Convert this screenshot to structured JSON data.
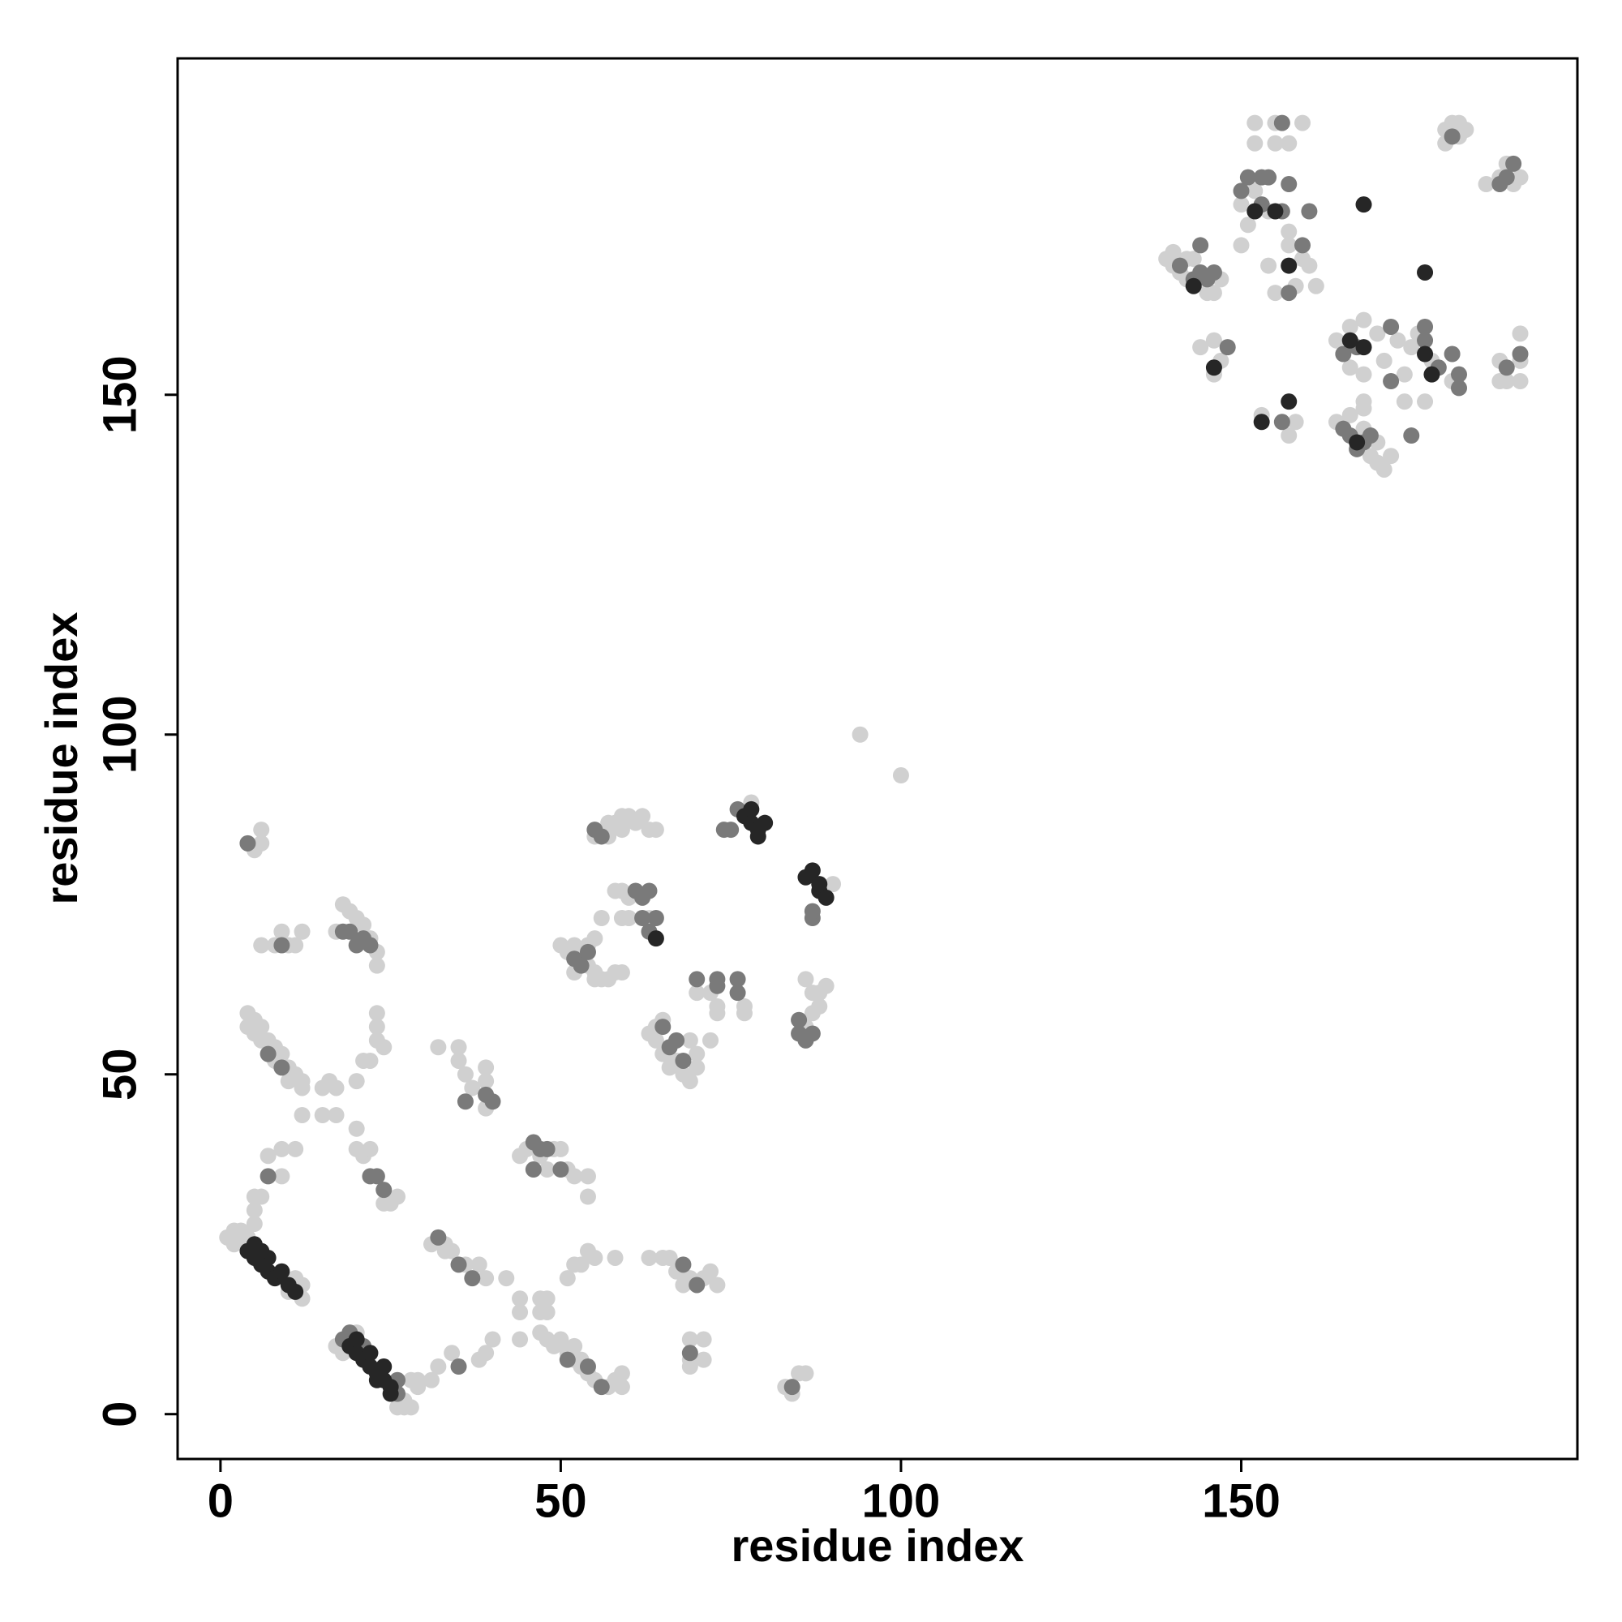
{
  "chart_data": {
    "type": "scatter",
    "xlabel": "residue index",
    "ylabel": "residue index",
    "xlim": [
      -6.3,
      199.4
    ],
    "ylim": [
      -6.6,
      199.5
    ],
    "xticks": [
      0,
      50,
      100,
      150
    ],
    "yticks": [
      0,
      50,
      100,
      150
    ],
    "series": [
      {
        "color": "#d0d0d0",
        "x": [
          1,
          2,
          3,
          2,
          11,
          12,
          10,
          12,
          4,
          3,
          17,
          18,
          26,
          27,
          28,
          29,
          28,
          20,
          27,
          4,
          5,
          6,
          7,
          8,
          9,
          10,
          11,
          12,
          4,
          6,
          8,
          10,
          12,
          5,
          12,
          5,
          6,
          6,
          6,
          8,
          9,
          11,
          12,
          10,
          18,
          19,
          20,
          21,
          22,
          23,
          23,
          17,
          23,
          23,
          23,
          24,
          21,
          22,
          20,
          17,
          15,
          16,
          17,
          15,
          20,
          20,
          21,
          22,
          24,
          25,
          26,
          7,
          9,
          11,
          9,
          5,
          5,
          5,
          6,
          31,
          33,
          34,
          36,
          38,
          39,
          42,
          33,
          29,
          31,
          32,
          34,
          38,
          39,
          40,
          32,
          35,
          35,
          36,
          37,
          39,
          39,
          39,
          44,
          45,
          47,
          49,
          50,
          51,
          52,
          54,
          54,
          48,
          44,
          44,
          44,
          48,
          48,
          47,
          47,
          51,
          52,
          53,
          54,
          55,
          58,
          47,
          48,
          49,
          50,
          51,
          52,
          53,
          54,
          55,
          57,
          58,
          59,
          59,
          52,
          53,
          50,
          51,
          52,
          53,
          54,
          55,
          56,
          57,
          58,
          59,
          54,
          55,
          56,
          52,
          55,
          55,
          57,
          58,
          59,
          60,
          61,
          62,
          63,
          64,
          57,
          59,
          58,
          59,
          60,
          59,
          60,
          63,
          63,
          64,
          65,
          66,
          67,
          68,
          69,
          70,
          70,
          65,
          69,
          64,
          72,
          73,
          72,
          70,
          73,
          77,
          77,
          78,
          90,
          86,
          87,
          88,
          88,
          89,
          87,
          86,
          83,
          84,
          86,
          85,
          94,
          100,
          63,
          65,
          66,
          67,
          68,
          71,
          72,
          73,
          69,
          69,
          69,
          69,
          71,
          71,
          139,
          140,
          141,
          142,
          143,
          145,
          146,
          147,
          140,
          142,
          144,
          146,
          146,
          147,
          150,
          151,
          152,
          154,
          150,
          154,
          155,
          157,
          158,
          159,
          160,
          161,
          157,
          152,
          152,
          155,
          157,
          159,
          155,
          153,
          157,
          158,
          164,
          166,
          168,
          169,
          170,
          171,
          172,
          170,
          168,
          164,
          166,
          168,
          170,
          171,
          173,
          168,
          168,
          166,
          174,
          175,
          176,
          177,
          178,
          174,
          181,
          180,
          181,
          182,
          183,
          180,
          182,
          186,
          188,
          189,
          191,
          190,
          188,
          188,
          191,
          191,
          189,
          191
        ],
        "values": [
          26,
          27,
          26,
          25,
          20,
          19,
          18,
          17,
          26,
          27,
          10,
          9,
          1,
          2,
          1,
          4,
          5,
          12,
          1,
          59,
          58,
          57,
          55,
          54,
          53,
          51,
          50,
          49,
          57,
          55,
          52,
          49,
          48,
          56,
          44,
          83,
          84,
          86,
          69,
          69,
          71,
          69,
          71,
          69,
          75,
          74,
          73,
          72,
          70,
          68,
          66,
          71,
          59,
          57,
          55,
          54,
          52,
          52,
          49,
          48,
          48,
          49,
          44,
          44,
          42,
          39,
          38,
          39,
          31,
          31,
          32,
          38,
          39,
          39,
          35,
          32,
          30,
          28,
          32,
          25,
          24,
          24,
          22,
          22,
          20,
          20,
          25,
          5,
          5,
          7,
          9,
          8,
          9,
          11,
          54,
          54,
          52,
          50,
          48,
          45,
          51,
          49,
          38,
          39,
          38,
          39,
          39,
          36,
          35,
          35,
          32,
          36,
          17,
          15,
          11,
          17,
          15,
          17,
          15,
          20,
          22,
          22,
          24,
          23,
          23,
          12,
          11,
          10,
          11,
          9,
          8,
          7,
          6,
          5,
          4,
          5,
          4,
          6,
          10,
          8,
          69,
          68,
          69,
          67,
          66,
          65,
          64,
          64,
          65,
          65,
          69,
          70,
          73,
          65,
          64,
          85,
          87,
          87,
          88,
          88,
          87,
          88,
          86,
          86,
          85,
          86,
          77,
          77,
          76,
          73,
          73,
          73,
          56,
          55,
          53,
          51,
          52,
          50,
          49,
          51,
          53,
          58,
          55,
          57,
          62,
          60,
          55,
          62,
          59,
          60,
          59,
          90,
          78,
          64,
          62,
          60,
          62,
          63,
          59,
          57,
          4,
          3,
          6,
          6,
          100,
          94,
          23,
          23,
          23,
          21,
          19,
          20,
          21,
          19,
          20,
          11,
          8,
          7,
          8,
          11,
          170,
          169,
          168,
          167,
          170,
          165,
          165,
          167,
          171,
          170,
          157,
          158,
          153,
          155,
          178,
          175,
          180,
          177,
          172,
          169,
          165,
          172,
          166,
          170,
          169,
          166,
          174,
          190,
          187,
          190,
          187,
          190,
          187,
          147,
          144,
          146,
          146,
          147,
          145,
          141,
          140,
          139,
          141,
          143,
          148,
          158,
          160,
          161,
          159,
          155,
          158,
          153,
          149,
          154,
          153,
          157,
          159,
          149,
          155,
          149,
          152,
          189,
          190,
          190,
          189,
          187,
          188,
          181,
          182,
          184,
          182,
          181,
          155,
          152,
          159,
          155,
          152,
          152
        ]
      },
      {
        "color": "#7a7a7a",
        "x": [
          7,
          9,
          4,
          9,
          18,
          19,
          21,
          26,
          26,
          18,
          19,
          20,
          21,
          22,
          22,
          23,
          24,
          7,
          32,
          35,
          37,
          35,
          36,
          39,
          40,
          46,
          47,
          46,
          48,
          50,
          51,
          54,
          56,
          52,
          53,
          54,
          55,
          56,
          61,
          62,
          63,
          62,
          63,
          64,
          66,
          67,
          68,
          65,
          70,
          73,
          73,
          74,
          75,
          76,
          76,
          76,
          87,
          87,
          85,
          86,
          87,
          85,
          84,
          68,
          70,
          69,
          141,
          143,
          144,
          145,
          146,
          144,
          148,
          151,
          153,
          154,
          153,
          150,
          157,
          159,
          160,
          157,
          156,
          156,
          156,
          165,
          166,
          167,
          168,
          169,
          165,
          167,
          172,
          172,
          177,
          177,
          175,
          181,
          182,
          182,
          179,
          181,
          188,
          189,
          190,
          189,
          191
        ],
        "values": [
          53,
          51,
          84,
          69,
          11,
          12,
          10,
          3,
          5,
          71,
          71,
          69,
          70,
          69,
          35,
          35,
          33,
          35,
          26,
          22,
          20,
          7,
          46,
          47,
          46,
          40,
          39,
          36,
          39,
          36,
          8,
          7,
          4,
          67,
          66,
          68,
          86,
          85,
          77,
          76,
          77,
          73,
          71,
          73,
          54,
          55,
          52,
          57,
          64,
          63,
          64,
          86,
          86,
          64,
          62,
          89,
          73,
          74,
          56,
          55,
          56,
          58,
          4,
          22,
          19,
          9,
          169,
          167,
          168,
          167,
          168,
          172,
          157,
          182,
          182,
          182,
          178,
          180,
          181,
          172,
          177,
          165,
          177,
          190,
          146,
          145,
          144,
          142,
          143,
          144,
          156,
          157,
          160,
          152,
          158,
          160,
          144,
          156,
          153,
          151,
          154,
          188,
          181,
          182,
          184,
          154,
          156
        ]
      },
      {
        "color": "#262626",
        "x": [
          4,
          5,
          6,
          7,
          7,
          8,
          9,
          10,
          11,
          6,
          5,
          19,
          20,
          21,
          22,
          23,
          24,
          25,
          22,
          24,
          20,
          23,
          25,
          64,
          77,
          78,
          79,
          80,
          78,
          79,
          86,
          87,
          88,
          89,
          88,
          143,
          146,
          152,
          155,
          157,
          153,
          157,
          167,
          168,
          166,
          177,
          178,
          177,
          168
        ],
        "values": [
          24,
          23,
          22,
          23,
          21,
          20,
          21,
          19,
          18,
          24,
          25,
          10,
          9,
          8,
          7,
          6,
          5,
          4,
          9,
          7,
          11,
          5,
          3,
          70,
          88,
          87,
          86,
          87,
          89,
          85,
          79,
          80,
          77,
          76,
          78,
          166,
          154,
          177,
          177,
          169,
          146,
          149,
          143,
          157,
          158,
          156,
          153,
          168,
          178
        ]
      }
    ]
  }
}
